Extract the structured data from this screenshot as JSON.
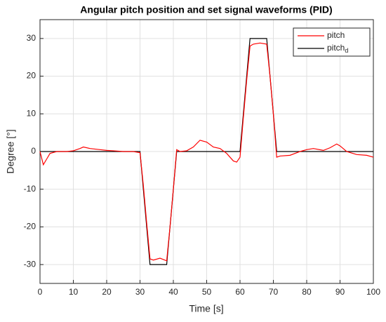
{
  "chart_data": {
    "type": "line",
    "title": "Angular pitch position and set signal waveforms (PID)",
    "x_label": "Time [s]",
    "y_label": "Degree [°]",
    "x": [
      0,
      1,
      2,
      3,
      5,
      8,
      10,
      12,
      13,
      15,
      18,
      20,
      22,
      25,
      28,
      30,
      31,
      32,
      33,
      34,
      36,
      38,
      39,
      40,
      41,
      42,
      44,
      46,
      48,
      50,
      52,
      54,
      56,
      58,
      59,
      60,
      61,
      62,
      63,
      64,
      66,
      68,
      69,
      70,
      71,
      72,
      75,
      78,
      80,
      82,
      85,
      87,
      89,
      90,
      92,
      95,
      98,
      100
    ],
    "series": [
      {
        "name": "pitch",
        "color": "#ff0000",
        "values": [
          0,
          -3.5,
          -2,
          -0.5,
          0,
          0,
          0.2,
          0.8,
          1.2,
          0.8,
          0.5,
          0.3,
          0.2,
          0,
          0,
          -0.3,
          -9,
          -19,
          -28.5,
          -28.8,
          -28.3,
          -29,
          -20,
          -10,
          0.5,
          0,
          0.2,
          1.2,
          3,
          2.5,
          1.2,
          0.8,
          -0.5,
          -2.5,
          -2.8,
          -1.5,
          9,
          19,
          28,
          28.5,
          28.8,
          28.5,
          20,
          10,
          -1.5,
          -1.2,
          -1,
          0,
          0.5,
          0.8,
          0.3,
          1,
          2,
          1.5,
          0,
          -0.8,
          -1,
          -1.5
        ]
      },
      {
        "name": "pitch_d",
        "color": "#000000",
        "values": [
          0,
          0,
          0,
          0,
          0,
          0,
          0,
          0,
          0,
          0,
          0,
          0,
          0,
          0,
          0,
          0,
          -10,
          -20,
          -30,
          -30,
          -30,
          -30,
          -20,
          -10,
          0,
          0,
          0,
          0,
          0,
          0,
          0,
          0,
          0,
          0,
          0,
          0,
          10,
          20,
          30,
          30,
          30,
          30,
          20,
          10,
          0,
          0,
          0,
          0,
          0,
          0,
          0,
          0,
          0,
          0,
          0,
          0,
          0,
          0
        ]
      }
    ],
    "xlim": [
      0,
      100
    ],
    "xticks": [
      0,
      10,
      20,
      30,
      40,
      50,
      60,
      70,
      80,
      90,
      100
    ],
    "ylim": [
      -35,
      35
    ],
    "yticks": [
      -30,
      -20,
      -10,
      0,
      10,
      20,
      30
    ],
    "grid": true,
    "legend": "upper right"
  }
}
